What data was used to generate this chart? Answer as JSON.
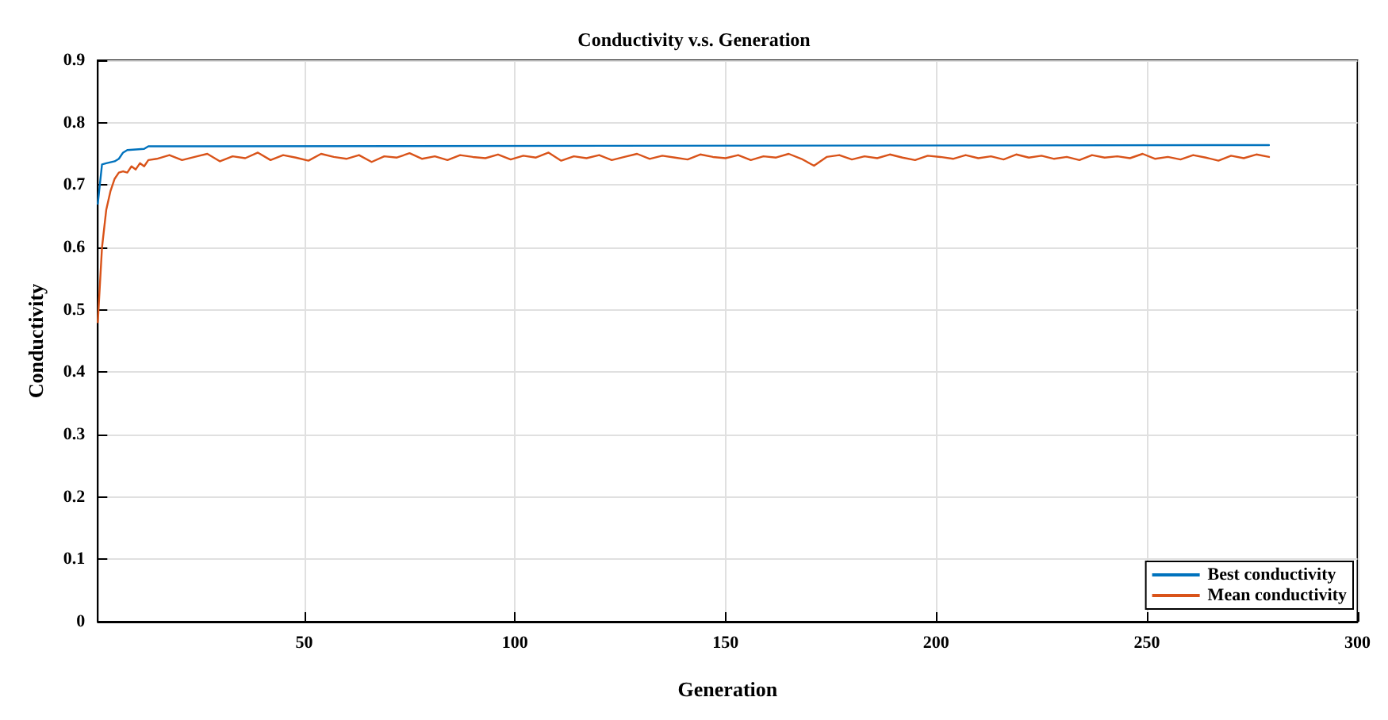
{
  "chart_data": {
    "type": "line",
    "title": "Conductivity v.s. Generation",
    "xlabel": "Generation",
    "ylabel": "Conductivity",
    "xlim": [
      1,
      300
    ],
    "xticks": [
      50,
      100,
      150,
      200,
      250,
      300
    ],
    "ylim": [
      0,
      0.9
    ],
    "yticks": [
      0,
      0.1,
      0.2,
      0.3,
      0.4,
      0.5,
      0.6,
      0.7,
      0.8,
      0.9
    ],
    "grid": true,
    "legend": "bottom right",
    "marker": "none",
    "line_style": "solid",
    "series": [
      {
        "name": "Best conductivity",
        "color": "#0072bd",
        "x": [
          1,
          2,
          3,
          5,
          6,
          7,
          8,
          10,
          12,
          13,
          279
        ],
        "values": [
          0.67,
          0.733,
          0.735,
          0.738,
          0.742,
          0.752,
          0.756,
          0.757,
          0.758,
          0.762,
          0.764
        ]
      },
      {
        "name": "Mean conductivity",
        "color": "#d95319",
        "x": [
          1,
          2,
          3,
          4,
          5,
          6,
          7,
          8,
          9,
          10,
          11,
          12,
          13,
          15,
          18,
          21,
          24,
          27,
          30,
          33,
          36,
          39,
          42,
          45,
          48,
          51,
          54,
          57,
          60,
          63,
          66,
          69,
          72,
          75,
          78,
          81,
          84,
          87,
          90,
          93,
          96,
          99,
          102,
          105,
          108,
          111,
          114,
          117,
          120,
          123,
          126,
          129,
          132,
          135,
          138,
          141,
          144,
          147,
          150,
          153,
          156,
          159,
          162,
          165,
          168,
          171,
          174,
          177,
          180,
          183,
          186,
          189,
          192,
          195,
          198,
          201,
          204,
          207,
          210,
          213,
          216,
          219,
          222,
          225,
          228,
          231,
          234,
          237,
          240,
          243,
          246,
          249,
          252,
          255,
          258,
          261,
          264,
          267,
          270,
          273,
          276,
          279
        ],
        "values": [
          0.48,
          0.6,
          0.66,
          0.69,
          0.71,
          0.72,
          0.722,
          0.72,
          0.73,
          0.725,
          0.735,
          0.73,
          0.74,
          0.742,
          0.748,
          0.74,
          0.745,
          0.75,
          0.738,
          0.746,
          0.743,
          0.752,
          0.74,
          0.748,
          0.744,
          0.739,
          0.75,
          0.745,
          0.742,
          0.748,
          0.737,
          0.746,
          0.744,
          0.751,
          0.742,
          0.746,
          0.74,
          0.748,
          0.745,
          0.743,
          0.749,
          0.741,
          0.747,
          0.744,
          0.752,
          0.739,
          0.746,
          0.743,
          0.748,
          0.74,
          0.745,
          0.75,
          0.742,
          0.747,
          0.744,
          0.741,
          0.749,
          0.745,
          0.743,
          0.748,
          0.74,
          0.746,
          0.744,
          0.75,
          0.742,
          0.731,
          0.745,
          0.748,
          0.741,
          0.746,
          0.743,
          0.749,
          0.744,
          0.74,
          0.747,
          0.745,
          0.742,
          0.748,
          0.743,
          0.746,
          0.741,
          0.749,
          0.744,
          0.747,
          0.742,
          0.745,
          0.74,
          0.748,
          0.744,
          0.746,
          0.743,
          0.75,
          0.742,
          0.745,
          0.741,
          0.748,
          0.744,
          0.739,
          0.747,
          0.743,
          0.749,
          0.745
        ]
      }
    ]
  }
}
